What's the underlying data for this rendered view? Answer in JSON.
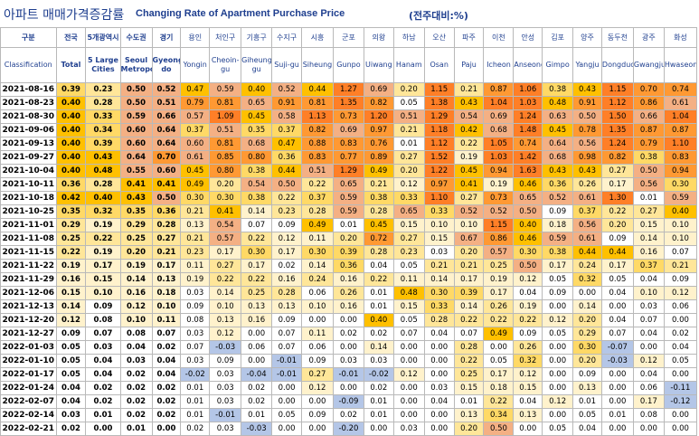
{
  "title": {
    "korean": "아파트 매매가격증감률",
    "english": "Changing Rate of Apartment Purchase Price",
    "unit": "(전주대비:%)"
  },
  "chart_data": {
    "type": "table",
    "corner": {
      "korean": "구분",
      "english": "Classification"
    },
    "columns": [
      {
        "korean": "전국",
        "english": "Total"
      },
      {
        "korean": "5개광역시",
        "english": "5 Large Cities"
      },
      {
        "korean": "수도권",
        "english": "Seoul Metropolitan"
      },
      {
        "korean": "경기",
        "english": "Gyeonggi-do"
      },
      {
        "korean": "용인",
        "english": "Yongin"
      },
      {
        "korean": "처인구",
        "english": "Cheoin-gu"
      },
      {
        "korean": "기흥구",
        "english": "Giheung-gu"
      },
      {
        "korean": "수지구",
        "english": "Suji-gu"
      },
      {
        "korean": "시흥",
        "english": "Siheung"
      },
      {
        "korean": "군포",
        "english": "Gunpo"
      },
      {
        "korean": "의왕",
        "english": "Uiwang"
      },
      {
        "korean": "하남",
        "english": "Hanam"
      },
      {
        "korean": "오산",
        "english": "Osan"
      },
      {
        "korean": "파주",
        "english": "Paju"
      },
      {
        "korean": "이천",
        "english": "Icheon"
      },
      {
        "korean": "안성",
        "english": "Anseong"
      },
      {
        "korean": "김포",
        "english": "Gimpo"
      },
      {
        "korean": "양주",
        "english": "Yangju"
      },
      {
        "korean": "동두천",
        "english": "Dongducheon"
      },
      {
        "korean": "광주",
        "english": "Gwangju"
      },
      {
        "korean": "화성",
        "english": "Hwaseong"
      }
    ],
    "rows": [
      {
        "date": "2021-08-16",
        "values": [
          0.39,
          0.23,
          0.5,
          0.52,
          0.47,
          0.59,
          0.4,
          0.52,
          0.44,
          1.27,
          0.69,
          0.2,
          1.15,
          0.21,
          0.87,
          1.06,
          0.38,
          0.43,
          1.15,
          0.7,
          0.74
        ]
      },
      {
        "date": "2021-08-23",
        "values": [
          0.4,
          0.28,
          0.5,
          0.51,
          0.79,
          0.81,
          0.65,
          0.91,
          0.81,
          1.35,
          0.82,
          0.05,
          1.38,
          0.43,
          1.04,
          1.03,
          0.48,
          0.91,
          1.12,
          0.86,
          0.61
        ]
      },
      {
        "date": "2021-08-30",
        "values": [
          0.4,
          0.33,
          0.59,
          0.66,
          0.57,
          1.09,
          0.45,
          0.58,
          1.13,
          0.73,
          1.2,
          0.51,
          1.29,
          0.54,
          0.69,
          1.24,
          0.63,
          0.5,
          1.5,
          0.66,
          1.04
        ]
      },
      {
        "date": "2021-09-06",
        "values": [
          0.4,
          0.34,
          0.6,
          0.64,
          0.37,
          0.51,
          0.35,
          0.37,
          0.82,
          0.69,
          0.97,
          0.21,
          1.18,
          0.42,
          0.68,
          1.48,
          0.45,
          0.78,
          1.35,
          0.87,
          0.87
        ]
      },
      {
        "date": "2021-09-13",
        "values": [
          0.4,
          0.39,
          0.6,
          0.64,
          0.6,
          0.81,
          0.68,
          0.47,
          0.88,
          0.83,
          0.76,
          0.01,
          1.12,
          0.22,
          1.05,
          0.74,
          0.64,
          0.56,
          1.24,
          0.79,
          1.1
        ]
      },
      {
        "date": "2021-09-27",
        "values": [
          0.4,
          0.43,
          0.64,
          0.7,
          0.61,
          0.85,
          0.8,
          0.36,
          0.83,
          0.77,
          0.89,
          0.27,
          1.52,
          0.19,
          1.03,
          1.42,
          0.68,
          0.98,
          0.82,
          0.38,
          0.83
        ]
      },
      {
        "date": "2021-10-04",
        "values": [
          0.4,
          0.48,
          0.55,
          0.6,
          0.45,
          0.8,
          0.38,
          0.44,
          0.51,
          1.29,
          0.49,
          0.2,
          1.22,
          0.45,
          0.94,
          1.63,
          0.43,
          0.43,
          0.27,
          0.5,
          0.94
        ]
      },
      {
        "date": "2021-10-11",
        "values": [
          0.36,
          0.28,
          0.41,
          0.41,
          0.49,
          0.2,
          0.54,
          0.5,
          0.22,
          0.65,
          0.21,
          0.12,
          0.97,
          0.41,
          0.19,
          0.46,
          0.36,
          0.26,
          0.17,
          0.56,
          0.3
        ]
      },
      {
        "date": "2021-10-18",
        "values": [
          0.42,
          0.4,
          0.43,
          0.5,
          0.3,
          0.3,
          0.38,
          0.22,
          0.37,
          0.59,
          0.38,
          0.33,
          1.1,
          0.27,
          0.73,
          0.65,
          0.52,
          0.61,
          1.3,
          0.01,
          0.59
        ]
      },
      {
        "date": "2021-10-25",
        "values": [
          0.35,
          0.32,
          0.35,
          0.36,
          0.21,
          0.41,
          0.14,
          0.23,
          0.28,
          0.59,
          0.28,
          0.65,
          0.33,
          0.52,
          0.52,
          0.5,
          0.09,
          0.37,
          0.22,
          0.27,
          0.4
        ]
      },
      {
        "date": "2021-11-01",
        "values": [
          0.29,
          0.19,
          0.29,
          0.28,
          0.13,
          0.54,
          0.07,
          0.09,
          0.49,
          0.01,
          0.45,
          0.15,
          0.1,
          0.1,
          1.15,
          0.4,
          0.18,
          0.56,
          0.2,
          0.15,
          0.1
        ]
      },
      {
        "date": "2021-11-08",
        "values": [
          0.25,
          0.22,
          0.25,
          0.27,
          0.21,
          0.57,
          0.22,
          0.12,
          0.11,
          0.2,
          0.72,
          0.27,
          0.15,
          0.67,
          0.86,
          0.46,
          0.59,
          0.61,
          0.09,
          0.14,
          0.1
        ]
      },
      {
        "date": "2021-11-15",
        "values": [
          0.22,
          0.19,
          0.2,
          0.21,
          0.23,
          0.17,
          0.3,
          0.17,
          0.3,
          0.39,
          0.28,
          0.23,
          0.03,
          0.2,
          0.57,
          0.3,
          0.38,
          0.44,
          0.44,
          0.16,
          0.07
        ]
      },
      {
        "date": "2021-11-22",
        "values": [
          0.19,
          0.17,
          0.19,
          0.17,
          0.11,
          0.27,
          0.17,
          0.02,
          0.14,
          0.36,
          0.04,
          0.05,
          0.21,
          0.21,
          0.25,
          0.5,
          0.17,
          0.24,
          0.17,
          0.37,
          0.21
        ]
      },
      {
        "date": "2021-11-29",
        "values": [
          0.16,
          0.15,
          0.14,
          0.13,
          0.19,
          0.22,
          0.22,
          0.16,
          0.24,
          0.16,
          0.22,
          0.11,
          0.14,
          0.17,
          0.19,
          0.12,
          0.05,
          0.32,
          0.05,
          0.04,
          0.09
        ]
      },
      {
        "date": "2021-12-06",
        "values": [
          0.15,
          0.1,
          0.16,
          0.18,
          0.03,
          0.14,
          0.25,
          0.28,
          0.06,
          0.26,
          0.01,
          0.48,
          0.3,
          0.39,
          0.17,
          0.04,
          0.09,
          0.0,
          0.04,
          0.1,
          0.12
        ]
      },
      {
        "date": "2021-12-13",
        "values": [
          0.14,
          0.09,
          0.12,
          0.1,
          0.09,
          0.1,
          0.13,
          0.13,
          0.1,
          0.16,
          0.01,
          0.15,
          0.33,
          0.14,
          0.26,
          0.19,
          0.0,
          0.14,
          0.0,
          0.03,
          0.06
        ]
      },
      {
        "date": "2021-12-20",
        "values": [
          0.12,
          0.08,
          0.1,
          0.11,
          0.08,
          0.13,
          0.16,
          0.09,
          0.0,
          0.0,
          0.4,
          0.05,
          0.28,
          0.22,
          0.22,
          0.22,
          0.12,
          0.2,
          0.04,
          0.07,
          0.0
        ]
      },
      {
        "date": "2021-12-27",
        "values": [
          0.09,
          0.07,
          0.08,
          0.07,
          0.03,
          0.12,
          0.0,
          0.07,
          0.11,
          0.02,
          0.02,
          0.07,
          0.04,
          0.07,
          0.49,
          0.09,
          0.05,
          0.29,
          0.07,
          0.04,
          0.02
        ]
      },
      {
        "date": "2022-01-03",
        "values": [
          0.05,
          0.03,
          0.04,
          0.02,
          0.07,
          -0.03,
          0.06,
          0.07,
          0.06,
          0.0,
          0.14,
          0.0,
          0.0,
          0.28,
          0.0,
          0.26,
          0.0,
          0.3,
          -0.07,
          0.0,
          0.04
        ]
      },
      {
        "date": "2022-01-10",
        "values": [
          0.05,
          0.04,
          0.03,
          0.04,
          0.03,
          0.09,
          0.0,
          -0.01,
          0.09,
          0.03,
          0.03,
          0.0,
          0.0,
          0.22,
          0.05,
          0.32,
          0.0,
          0.2,
          -0.03,
          0.12,
          0.05
        ]
      },
      {
        "date": "2022-01-17",
        "values": [
          0.05,
          0.04,
          0.02,
          0.04,
          -0.02,
          0.03,
          -0.04,
          -0.01,
          0.27,
          -0.01,
          -0.02,
          0.12,
          0.0,
          0.25,
          0.17,
          0.12,
          0.0,
          0.09,
          0.0,
          0.04,
          0.0
        ]
      },
      {
        "date": "2022-01-24",
        "values": [
          0.04,
          0.02,
          0.02,
          0.02,
          0.01,
          0.03,
          0.02,
          0.0,
          0.12,
          0.0,
          0.02,
          0.0,
          0.03,
          0.15,
          0.18,
          0.15,
          0.0,
          0.13,
          0.0,
          0.06,
          -0.11
        ]
      },
      {
        "date": "2022-02-07",
        "values": [
          0.04,
          0.02,
          0.02,
          0.02,
          0.01,
          0.03,
          0.02,
          0.0,
          0.0,
          -0.09,
          0.01,
          0.0,
          0.04,
          0.01,
          0.22,
          0.04,
          0.12,
          0.01,
          0.0,
          0.17,
          -0.12
        ]
      },
      {
        "date": "2022-02-14",
        "values": [
          0.03,
          0.01,
          0.02,
          0.02,
          0.01,
          -0.01,
          0.01,
          0.05,
          0.09,
          0.02,
          0.01,
          0.0,
          0.0,
          0.13,
          0.34,
          0.13,
          0.0,
          0.05,
          0.01,
          0.08,
          0.0
        ]
      },
      {
        "date": "2022-02-21",
        "values": [
          0.02,
          0.0,
          0.01,
          0.0,
          0.02,
          0.03,
          -0.03,
          0.0,
          0.0,
          -0.2,
          0.0,
          0.03,
          0.0,
          0.2,
          0.5,
          0.0,
          0.05,
          0.04,
          0.0,
          0.0,
          0.0
        ]
      }
    ]
  },
  "colors": {
    "header_text": "#1f3f8f",
    "scale": [
      "#ffffff",
      "#fff2cc",
      "#ffe699",
      "#ffd966",
      "#ffc000",
      "#f4b084",
      "#ff9933",
      "#ff7f27"
    ],
    "negative": "#b4c6e7",
    "grid": "#b9b9b9"
  }
}
